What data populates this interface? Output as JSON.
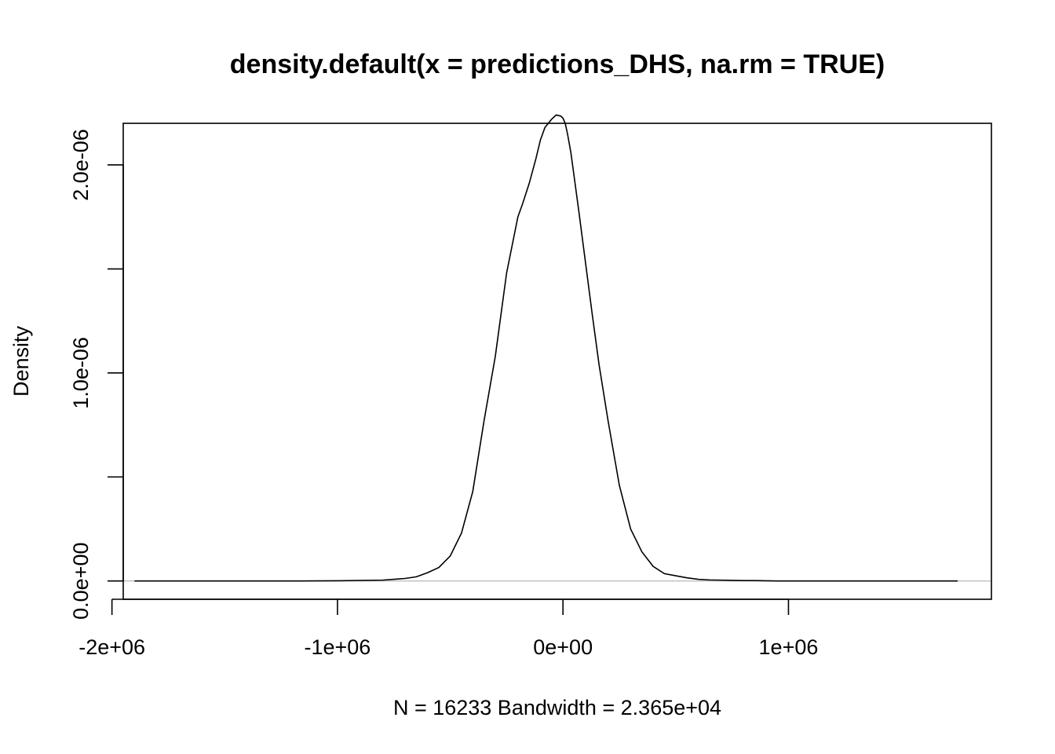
{
  "chart_data": {
    "type": "line",
    "title": "density.default(x = predictions_DHS, na.rm = TRUE)",
    "xlabel": "N = 16233   Bandwidth = 2.365e+04",
    "ylabel": "Density",
    "xlim": [
      -1950000,
      1900000
    ],
    "ylim": [
      -8.8e-08,
      2.2e-06
    ],
    "x_ticks": [
      {
        "value": -2000000,
        "label": "-2e+06"
      },
      {
        "value": -1000000,
        "label": "-1e+06"
      },
      {
        "value": 0,
        "label": "0e+00"
      },
      {
        "value": 1000000,
        "label": "1e+06"
      }
    ],
    "y_ticks": [
      {
        "value": 0,
        "label": "0.0e+00"
      },
      {
        "value": 5e-07,
        "label": ""
      },
      {
        "value": 1e-06,
        "label": "1.0e-06"
      },
      {
        "value": 1.5e-06,
        "label": ""
      },
      {
        "value": 2e-06,
        "label": "2.0e-06"
      }
    ],
    "zero_line_color": "#bebebe",
    "line_color": "#000000",
    "series": [
      {
        "name": "density",
        "x": [
          -1900000,
          -1500000,
          -1200000,
          -1000000,
          -800000,
          -750000,
          -700000,
          -650000,
          -600000,
          -550000,
          -500000,
          -450000,
          -400000,
          -350000,
          -300000,
          -250000,
          -200000,
          -180000,
          -150000,
          -120000,
          -100000,
          -80000,
          -50000,
          -30000,
          -10000,
          0,
          10000,
          20000,
          35000,
          50000,
          70000,
          100000,
          130000,
          160000,
          200000,
          250000,
          300000,
          350000,
          400000,
          450000,
          500000,
          550000,
          600000,
          650000,
          700000,
          750000,
          800000,
          850000,
          900000,
          950000,
          1000000,
          1200000,
          1500000,
          1750000
        ],
        "y": [
          0,
          0,
          0,
          1e-09,
          4e-09,
          8e-09,
          1.2e-08,
          2e-08,
          4e-08,
          6.5e-08,
          1.2e-07,
          2.3e-07,
          4.3e-07,
          7.7e-07,
          1.08e-06,
          1.48e-06,
          1.75e-06,
          1.81e-06,
          1.91e-06,
          2.03e-06,
          2.12e-06,
          2.18e-06,
          2.22e-06,
          2.24e-06,
          2.235e-06,
          2.225e-06,
          2.2e-06,
          2.15e-06,
          2.06e-06,
          1.94e-06,
          1.78e-06,
          1.53e-06,
          1.28e-06,
          1.04e-06,
          7.7e-07,
          4.6e-07,
          2.5e-07,
          1.4e-07,
          7e-08,
          3.5e-08,
          2.5e-08,
          1.5e-08,
          8e-09,
          5e-09,
          4e-09,
          3e-09,
          2e-09,
          2e-09,
          1e-09,
          0,
          0,
          0,
          0,
          0
        ]
      }
    ]
  }
}
